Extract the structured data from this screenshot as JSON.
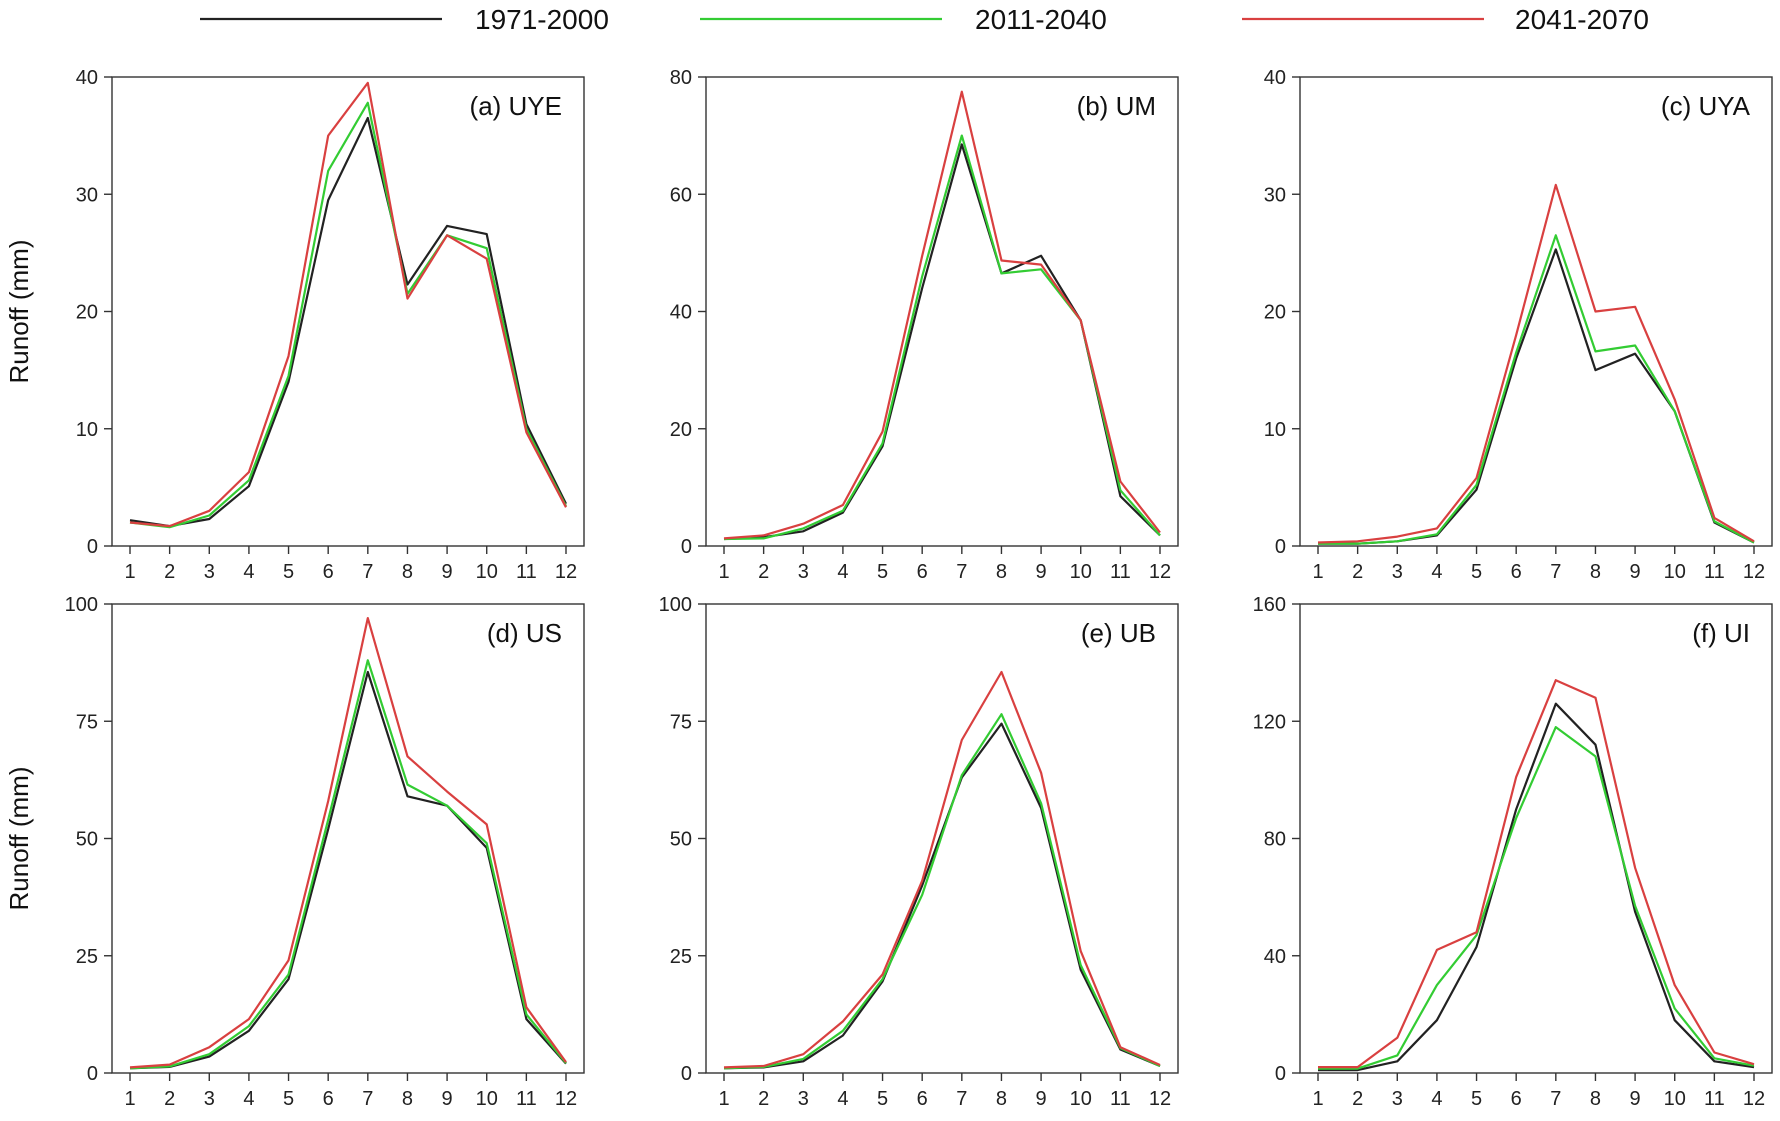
{
  "legend": [
    {
      "label": "1971-2000",
      "color": "#222222"
    },
    {
      "label": "2011-2040",
      "color": "#33cc33"
    },
    {
      "label": "2041-2070",
      "color": "#d94040"
    }
  ],
  "chart_data": [
    {
      "type": "line",
      "title": "(a) UYE",
      "ylabel": "Runoff (mm)",
      "xlabel": "",
      "x": [
        1,
        2,
        3,
        4,
        5,
        6,
        7,
        8,
        9,
        10,
        11,
        12
      ],
      "ylim": [
        0,
        40
      ],
      "yticks": [
        0,
        10,
        20,
        30,
        40
      ],
      "series": [
        {
          "name": "1971-2000",
          "color": "#222222",
          "values": [
            2.2,
            1.7,
            2.3,
            5.1,
            14.0,
            29.5,
            36.5,
            22.3,
            27.3,
            26.6,
            10.4,
            3.6
          ]
        },
        {
          "name": "2011-2040",
          "color": "#33cc33",
          "values": [
            2.0,
            1.6,
            2.6,
            5.6,
            14.5,
            32.0,
            37.8,
            21.5,
            26.5,
            25.4,
            10.0,
            3.4
          ]
        },
        {
          "name": "2041-2070",
          "color": "#d94040",
          "values": [
            2.0,
            1.7,
            3.0,
            6.3,
            16.2,
            35.0,
            39.5,
            21.1,
            26.5,
            24.5,
            9.7,
            3.3
          ]
        }
      ]
    },
    {
      "type": "line",
      "title": "(b) UM",
      "ylabel": "",
      "xlabel": "",
      "x": [
        1,
        2,
        3,
        4,
        5,
        6,
        7,
        8,
        9,
        10,
        11,
        12
      ],
      "ylim": [
        0,
        80
      ],
      "yticks": [
        0,
        20,
        40,
        60,
        80
      ],
      "series": [
        {
          "name": "1971-2000",
          "color": "#222222",
          "values": [
            1.2,
            1.5,
            2.5,
            5.7,
            17.0,
            44.0,
            68.5,
            46.5,
            49.5,
            38.5,
            8.5,
            1.8
          ]
        },
        {
          "name": "2011-2040",
          "color": "#33cc33",
          "values": [
            1.2,
            1.3,
            3.0,
            6.0,
            17.5,
            46.0,
            70.0,
            46.5,
            47.2,
            38.5,
            9.5,
            1.8
          ]
        },
        {
          "name": "2041-2070",
          "color": "#d94040",
          "values": [
            1.3,
            1.8,
            3.8,
            7.0,
            19.5,
            49.5,
            77.5,
            48.7,
            48.0,
            38.5,
            11.0,
            2.3
          ]
        }
      ]
    },
    {
      "type": "line",
      "title": "(c) UYA",
      "ylabel": "",
      "xlabel": "",
      "x": [
        1,
        2,
        3,
        4,
        5,
        6,
        7,
        8,
        9,
        10,
        11,
        12
      ],
      "ylim": [
        0,
        40
      ],
      "yticks": [
        0,
        10,
        20,
        30,
        40
      ],
      "series": [
        {
          "name": "1971-2000",
          "color": "#222222",
          "values": [
            0.2,
            0.2,
            0.4,
            0.9,
            4.8,
            16.0,
            25.3,
            15.0,
            16.4,
            11.5,
            2.0,
            0.3
          ]
        },
        {
          "name": "2011-2040",
          "color": "#33cc33",
          "values": [
            0.2,
            0.2,
            0.4,
            1.0,
            5.2,
            16.5,
            26.5,
            16.6,
            17.1,
            11.5,
            2.1,
            0.3
          ]
        },
        {
          "name": "2041-2070",
          "color": "#d94040",
          "values": [
            0.3,
            0.4,
            0.8,
            1.5,
            5.8,
            18.0,
            30.8,
            20.0,
            20.4,
            12.5,
            2.4,
            0.4
          ]
        }
      ]
    },
    {
      "type": "line",
      "title": "(d) US",
      "ylabel": "Runoff (mm)",
      "xlabel": "",
      "x": [
        1,
        2,
        3,
        4,
        5,
        6,
        7,
        8,
        9,
        10,
        11,
        12
      ],
      "ylim": [
        0,
        100
      ],
      "yticks": [
        0,
        25,
        50,
        75,
        100
      ],
      "series": [
        {
          "name": "1971-2000",
          "color": "#222222",
          "values": [
            1.0,
            1.3,
            3.5,
            9.0,
            20.0,
            52.0,
            85.5,
            59.0,
            57.0,
            48.0,
            11.5,
            2.0
          ]
        },
        {
          "name": "2011-2040",
          "color": "#33cc33",
          "values": [
            1.0,
            1.4,
            4.0,
            10.0,
            21.0,
            54.0,
            88.0,
            61.5,
            57.0,
            49.0,
            12.5,
            2.1
          ]
        },
        {
          "name": "2041-2070",
          "color": "#d94040",
          "values": [
            1.2,
            1.8,
            5.5,
            11.5,
            24.0,
            58.0,
            97.0,
            67.5,
            60.0,
            53.0,
            14.0,
            2.3
          ]
        }
      ]
    },
    {
      "type": "line",
      "title": "(e) UB",
      "ylabel": "",
      "xlabel": "",
      "x": [
        1,
        2,
        3,
        4,
        5,
        6,
        7,
        8,
        9,
        10,
        11,
        12
      ],
      "ylim": [
        0,
        100
      ],
      "yticks": [
        0,
        25,
        50,
        75,
        100
      ],
      "series": [
        {
          "name": "1971-2000",
          "color": "#222222",
          "values": [
            1.0,
            1.2,
            2.5,
            8.0,
            19.5,
            40.0,
            63.0,
            74.5,
            56.5,
            22.0,
            5.0,
            1.5
          ]
        },
        {
          "name": "2011-2040",
          "color": "#33cc33",
          "values": [
            1.0,
            1.3,
            3.0,
            9.0,
            20.0,
            38.0,
            63.5,
            76.5,
            57.5,
            23.0,
            5.3,
            1.5
          ]
        },
        {
          "name": "2041-2070",
          "color": "#d94040",
          "values": [
            1.2,
            1.5,
            4.0,
            11.0,
            21.0,
            41.0,
            71.0,
            85.5,
            64.0,
            26.0,
            5.5,
            1.7
          ]
        }
      ]
    },
    {
      "type": "line",
      "title": "(f) UI",
      "ylabel": "",
      "xlabel": "",
      "x": [
        1,
        2,
        3,
        4,
        5,
        6,
        7,
        8,
        9,
        10,
        11,
        12
      ],
      "ylim": [
        0,
        160
      ],
      "yticks": [
        0,
        40,
        80,
        120,
        160
      ],
      "series": [
        {
          "name": "1971-2000",
          "color": "#222222",
          "values": [
            1.0,
            1.0,
            4.0,
            18.0,
            43.0,
            90.0,
            126.0,
            112.0,
            55.0,
            18.0,
            4.0,
            2.0
          ]
        },
        {
          "name": "2011-2040",
          "color": "#33cc33",
          "values": [
            1.5,
            1.5,
            6.0,
            30.0,
            47.0,
            87.0,
            118.0,
            108.0,
            57.0,
            22.0,
            5.0,
            2.5
          ]
        },
        {
          "name": "2041-2070",
          "color": "#d94040",
          "values": [
            2.0,
            2.0,
            12.0,
            42.0,
            48.0,
            101.0,
            134.0,
            128.0,
            70.0,
            30.0,
            7.0,
            3.0
          ]
        }
      ]
    }
  ]
}
